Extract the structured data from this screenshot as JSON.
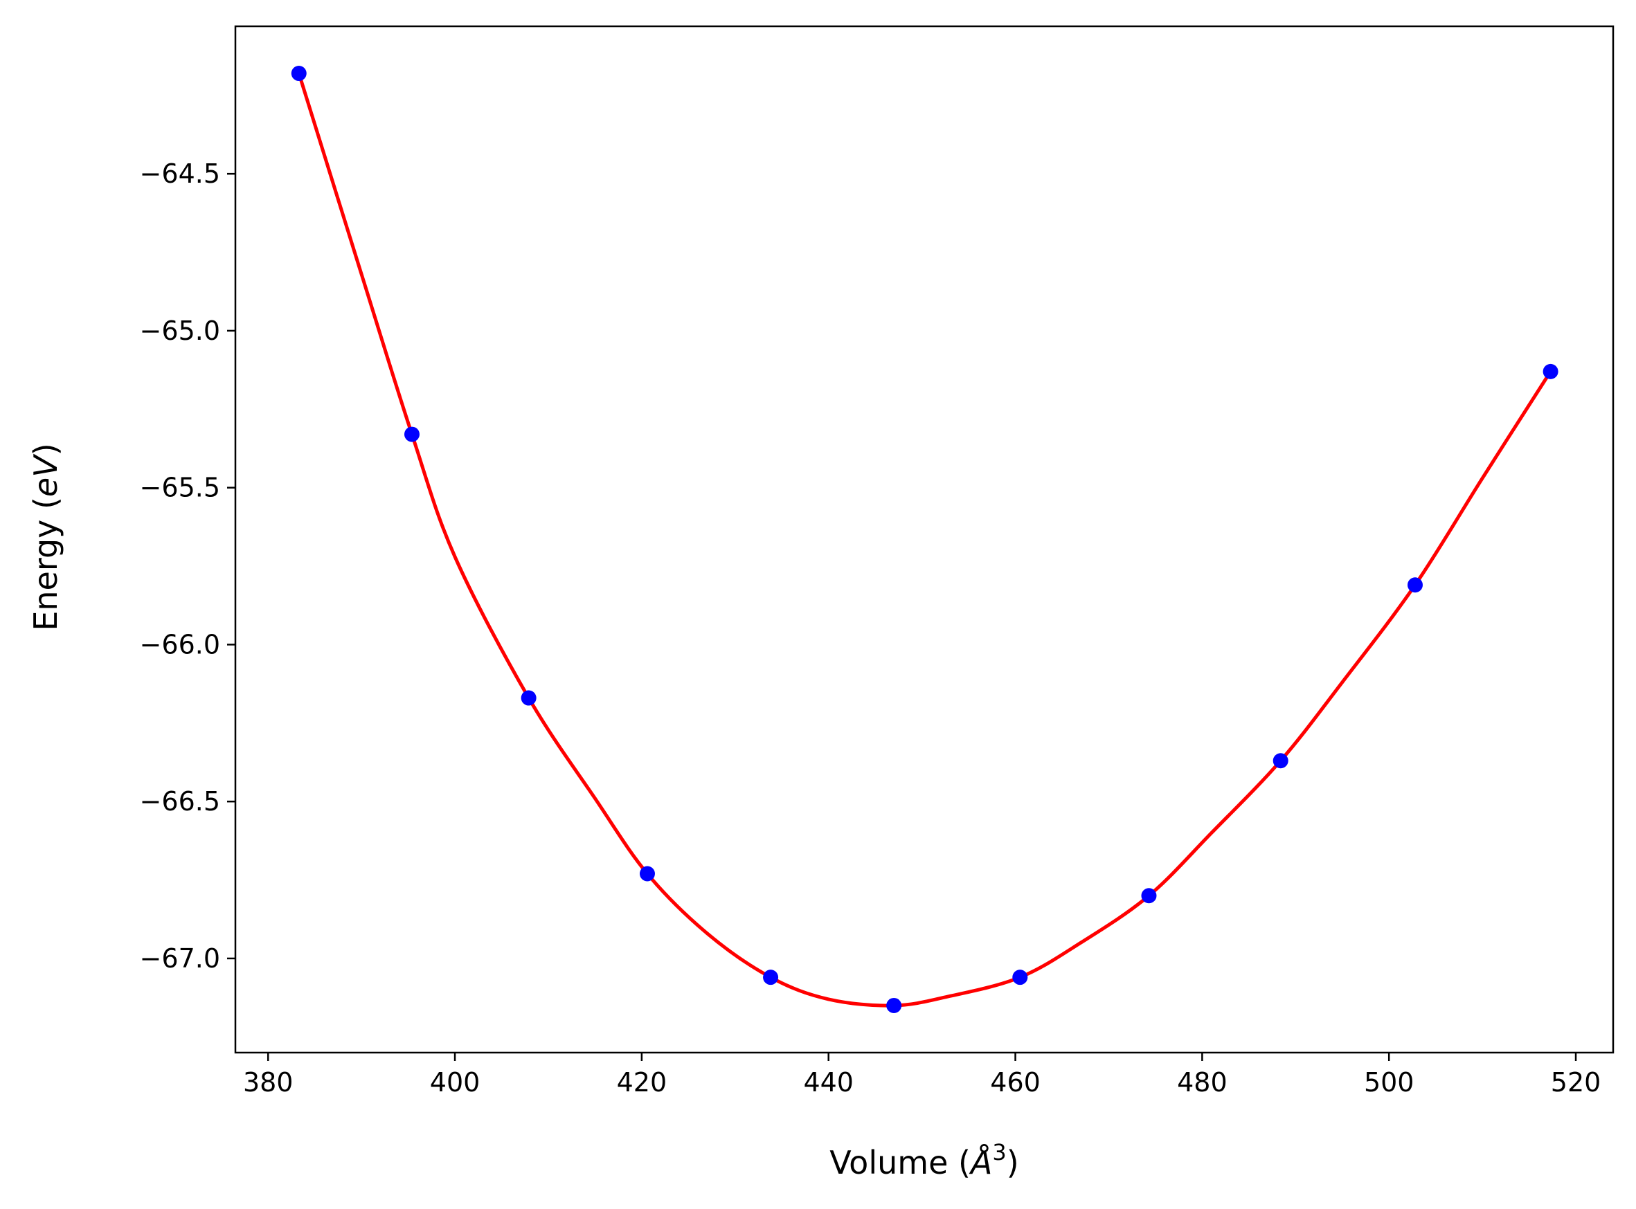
{
  "chart_data": {
    "type": "scatter",
    "title": "",
    "xlabel": "Volume (",
    "xlabel_symbol": "Å",
    "xlabel_exponent": "3",
    "xlabel_close": ")",
    "ylabel": "Energy (",
    "ylabel_unit": "eV",
    "ylabel_close": ")",
    "xlim": [
      376.5,
      524.0
    ],
    "ylim": [
      -67.3,
      -64.03
    ],
    "x_ticks": [
      380,
      400,
      420,
      440,
      460,
      480,
      500,
      520
    ],
    "x_tick_labels": [
      "380",
      "400",
      "420",
      "440",
      "460",
      "480",
      "500",
      "520"
    ],
    "y_ticks": [
      -64.5,
      -65.0,
      -65.5,
      -66.0,
      -66.5,
      -67.0
    ],
    "y_tick_labels": [
      "−64.5",
      "−65.0",
      "−65.5",
      "−66.0",
      "−66.5",
      "−67.0"
    ],
    "grid": false,
    "legend": "none",
    "series": [
      {
        "kind": "points",
        "color": "#0000ff",
        "x": [
          383.3,
          395.4,
          407.9,
          420.6,
          433.8,
          447.0,
          460.5,
          474.3,
          488.4,
          502.8,
          517.3
        ],
        "y": [
          -64.18,
          -65.33,
          -66.17,
          -66.73,
          -67.06,
          -67.15,
          -67.06,
          -66.8,
          -66.37,
          -65.81,
          -65.13
        ]
      },
      {
        "kind": "fit-curve",
        "color": "#ff0000",
        "x": [
          383.3,
          390.0,
          395.4,
          400.0,
          407.9,
          415.0,
          420.6,
          427.0,
          433.8,
          440.0,
          447.0,
          453.0,
          460.5,
          467.0,
          474.3,
          481.0,
          488.4,
          495.0,
          502.8,
          510.0,
          517.3
        ],
        "y": [
          -64.18,
          -64.82,
          -65.33,
          -65.72,
          -66.17,
          -66.49,
          -66.73,
          -66.92,
          -67.06,
          -67.13,
          -67.15,
          -67.12,
          -67.06,
          -66.95,
          -66.8,
          -66.6,
          -66.37,
          -66.12,
          -65.81,
          -65.47,
          -65.13
        ]
      }
    ]
  }
}
